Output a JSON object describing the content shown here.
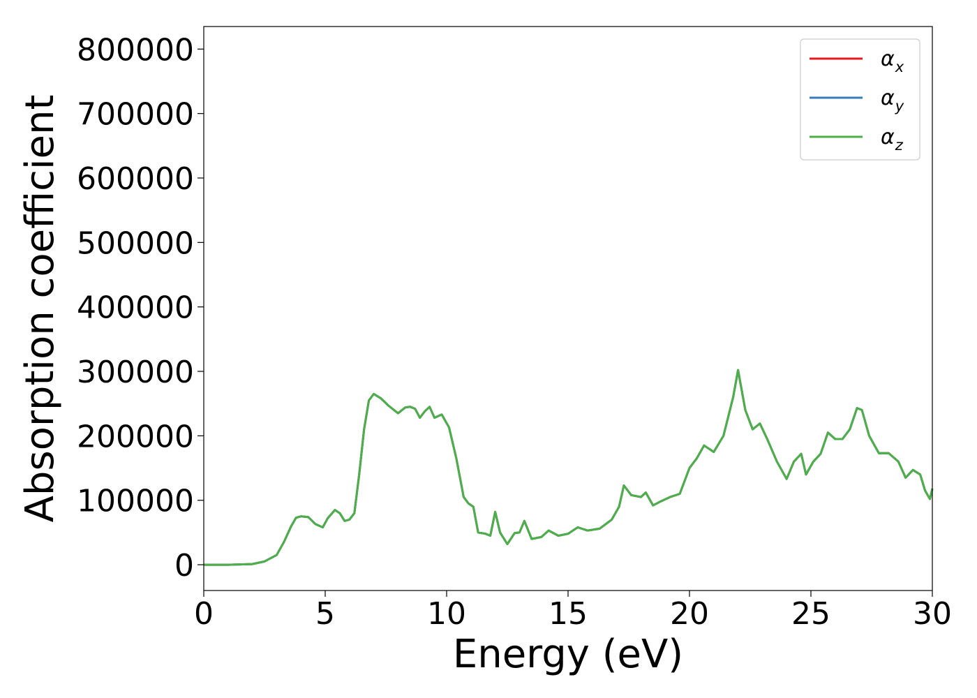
{
  "chart_data": {
    "type": "line",
    "title": "",
    "xlabel": "Energy (eV)",
    "ylabel": "Absorption coefficient",
    "xlim": [
      0,
      30
    ],
    "ylim": [
      -40000,
      835000
    ],
    "xticks": [
      0,
      5,
      10,
      15,
      20,
      25,
      30
    ],
    "xtick_labels": [
      "0",
      "5",
      "10",
      "15",
      "20",
      "25",
      "30"
    ],
    "yticks": [
      0,
      100000,
      200000,
      300000,
      400000,
      500000,
      600000,
      700000,
      800000
    ],
    "ytick_labels": [
      "0",
      "100000",
      "200000",
      "300000",
      "400000",
      "500000",
      "600000",
      "700000",
      "800000"
    ],
    "grid": false,
    "legend_position": "top-right",
    "x": [
      0,
      1,
      2,
      2.5,
      3,
      3.3,
      3.6,
      3.8,
      4.0,
      4.3,
      4.6,
      4.9,
      5.1,
      5.4,
      5.6,
      5.8,
      6.0,
      6.2,
      6.4,
      6.6,
      6.8,
      7.0,
      7.3,
      7.6,
      8.0,
      8.3,
      8.5,
      8.7,
      8.9,
      9.1,
      9.3,
      9.5,
      9.8,
      10.1,
      10.4,
      10.7,
      10.9,
      11.1,
      11.3,
      11.6,
      11.8,
      12.0,
      12.2,
      12.5,
      12.8,
      13.0,
      13.2,
      13.5,
      13.9,
      14.2,
      14.6,
      15.0,
      15.4,
      15.8,
      16.3,
      16.8,
      17.1,
      17.3,
      17.6,
      18.0,
      18.2,
      18.5,
      18.8,
      19.2,
      19.6,
      20.0,
      20.3,
      20.6,
      21.0,
      21.4,
      21.8,
      22.0,
      22.3,
      22.6,
      22.9,
      23.2,
      23.6,
      24.0,
      24.3,
      24.6,
      24.8,
      25.1,
      25.4,
      25.7,
      26.0,
      26.3,
      26.6,
      26.9,
      27.1,
      27.4,
      27.8,
      28.2,
      28.6,
      28.9,
      29.2,
      29.5,
      29.7,
      29.9,
      30.0
    ],
    "series": [
      {
        "name": "α_x",
        "color": "#e41a1c",
        "values": [
          0,
          0,
          1000,
          5000,
          15000,
          35000,
          60000,
          73000,
          75000,
          74000,
          63000,
          58000,
          72000,
          85000,
          80000,
          68000,
          70000,
          80000,
          140000,
          210000,
          255000,
          265000,
          258000,
          247000,
          235000,
          244000,
          245000,
          242000,
          228000,
          238000,
          245000,
          228000,
          233000,
          213000,
          165000,
          105000,
          95000,
          90000,
          50000,
          48000,
          45000,
          82000,
          50000,
          32000,
          49000,
          50000,
          68000,
          40000,
          43000,
          53000,
          45000,
          48000,
          58000,
          53000,
          56000,
          70000,
          90000,
          123000,
          108000,
          105000,
          112000,
          92000,
          98000,
          105000,
          110000,
          150000,
          165000,
          185000,
          175000,
          200000,
          260000,
          302000,
          240000,
          210000,
          219000,
          195000,
          160000,
          133000,
          160000,
          172000,
          140000,
          160000,
          172000,
          205000,
          195000,
          195000,
          210000,
          243000,
          240000,
          200000,
          173000,
          173000,
          160000,
          135000,
          147000,
          140000,
          115000,
          102000,
          118000
        ]
      },
      {
        "name": "α_y",
        "color": "#377eb8",
        "values": [
          0,
          0,
          1000,
          5000,
          15000,
          35000,
          60000,
          73000,
          75000,
          74000,
          63000,
          58000,
          72000,
          85000,
          80000,
          68000,
          70000,
          80000,
          140000,
          210000,
          255000,
          265000,
          258000,
          247000,
          235000,
          244000,
          245000,
          242000,
          228000,
          238000,
          245000,
          228000,
          233000,
          213000,
          165000,
          105000,
          95000,
          90000,
          50000,
          48000,
          45000,
          82000,
          50000,
          32000,
          49000,
          50000,
          68000,
          40000,
          43000,
          53000,
          45000,
          48000,
          58000,
          53000,
          56000,
          70000,
          90000,
          123000,
          108000,
          105000,
          112000,
          92000,
          98000,
          105000,
          110000,
          150000,
          165000,
          185000,
          175000,
          200000,
          260000,
          302000,
          240000,
          210000,
          219000,
          195000,
          160000,
          133000,
          160000,
          172000,
          140000,
          160000,
          172000,
          205000,
          195000,
          195000,
          210000,
          243000,
          240000,
          200000,
          173000,
          173000,
          160000,
          135000,
          147000,
          140000,
          115000,
          102000,
          118000
        ]
      },
      {
        "name": "α_z",
        "color": "#4daf4a",
        "values": [
          0,
          0,
          1000,
          5000,
          15000,
          35000,
          60000,
          73000,
          75000,
          74000,
          63000,
          58000,
          72000,
          85000,
          80000,
          68000,
          70000,
          80000,
          140000,
          210000,
          255000,
          265000,
          258000,
          247000,
          235000,
          244000,
          245000,
          242000,
          228000,
          238000,
          245000,
          228000,
          233000,
          213000,
          165000,
          105000,
          95000,
          90000,
          50000,
          48000,
          45000,
          82000,
          50000,
          32000,
          49000,
          50000,
          68000,
          40000,
          43000,
          53000,
          45000,
          48000,
          58000,
          53000,
          56000,
          70000,
          90000,
          123000,
          108000,
          105000,
          112000,
          92000,
          98000,
          105000,
          110000,
          150000,
          165000,
          185000,
          175000,
          200000,
          260000,
          302000,
          240000,
          210000,
          219000,
          195000,
          160000,
          133000,
          160000,
          172000,
          140000,
          160000,
          172000,
          205000,
          195000,
          195000,
          210000,
          243000,
          240000,
          200000,
          173000,
          173000,
          160000,
          135000,
          147000,
          140000,
          115000,
          102000,
          118000
        ]
      }
    ],
    "legend": [
      {
        "symbol": "α",
        "sub": "x"
      },
      {
        "symbol": "α",
        "sub": "y"
      },
      {
        "symbol": "α",
        "sub": "z"
      }
    ]
  }
}
